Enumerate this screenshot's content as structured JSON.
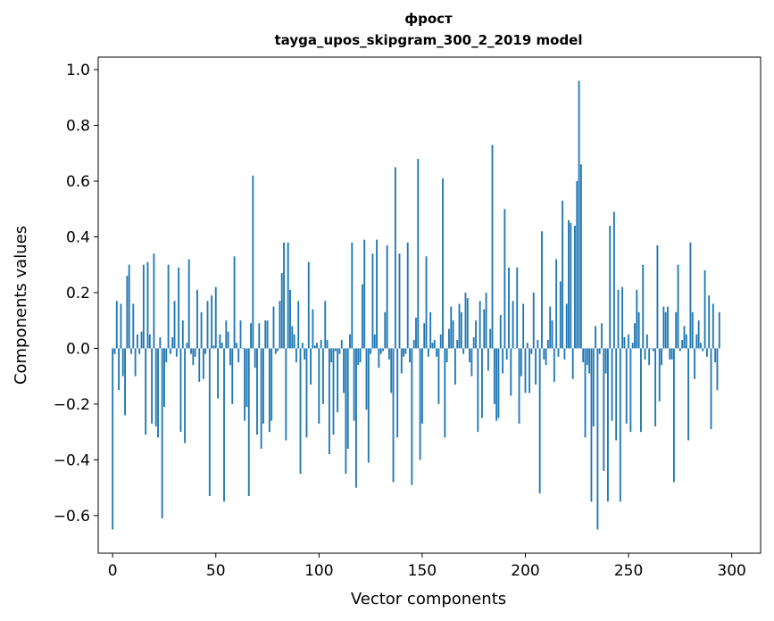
{
  "chart_data": {
    "type": "bar",
    "title": "фрост",
    "subtitle": "tayga_upos_skipgram_300_2_2019 model",
    "xlabel": "Vector components",
    "ylabel": "Components values",
    "xlim": [
      -7,
      314
    ],
    "ylim": [
      -0.735,
      1.045
    ],
    "grid": false,
    "bar_color": "#1f77b4",
    "x_ticks": [
      0,
      50,
      100,
      150,
      200,
      250,
      300
    ],
    "x_tick_labels": [
      "0",
      "50",
      "100",
      "150",
      "200",
      "250",
      "300"
    ],
    "y_ticks": [
      -0.6,
      -0.4,
      -0.2,
      0.0,
      0.2,
      0.4,
      0.6,
      0.8,
      1.0
    ],
    "y_tick_labels": [
      "−0.6",
      "−0.4",
      "−0.2",
      "0.0",
      "0.2",
      "0.4",
      "0.6",
      "0.8",
      "1.0"
    ],
    "values": [
      -0.65,
      -0.02,
      0.17,
      -0.15,
      0.16,
      -0.1,
      -0.24,
      0.26,
      0.3,
      -0.02,
      0.16,
      -0.1,
      0.05,
      -0.02,
      0.06,
      0.3,
      -0.31,
      0.31,
      0.05,
      -0.27,
      0.34,
      -0.28,
      -0.32,
      0.04,
      -0.61,
      -0.21,
      -0.05,
      0.3,
      -0.02,
      0.04,
      0.17,
      -0.03,
      0.29,
      -0.3,
      0.1,
      -0.34,
      0.02,
      0.32,
      -0.02,
      -0.06,
      -0.03,
      0.21,
      -0.12,
      0.13,
      -0.11,
      -0.02,
      0.17,
      -0.53,
      0.19,
      0.01,
      0.22,
      -0.18,
      0.05,
      0.02,
      -0.55,
      0.1,
      0.06,
      -0.06,
      -0.2,
      0.33,
      0.02,
      -0.05,
      0.1,
      0.0,
      -0.26,
      -0.21,
      -0.53,
      0.09,
      0.62,
      -0.07,
      -0.31,
      0.09,
      -0.36,
      -0.27,
      0.1,
      0.1,
      -0.3,
      -0.26,
      0.15,
      -0.02,
      -0.01,
      0.17,
      0.27,
      0.38,
      -0.33,
      0.38,
      0.21,
      0.08,
      0.05,
      -0.05,
      0.17,
      -0.45,
      0.02,
      -0.04,
      -0.32,
      0.31,
      -0.13,
      0.14,
      0.01,
      0.02,
      -0.27,
      0.03,
      -0.2,
      0.17,
      0.03,
      -0.38,
      -0.05,
      -0.31,
      -0.01,
      -0.23,
      -0.02,
      0.03,
      -0.16,
      -0.45,
      -0.36,
      0.05,
      0.38,
      -0.26,
      -0.5,
      -0.06,
      -0.05,
      0.23,
      0.39,
      -0.22,
      -0.41,
      -0.02,
      0.34,
      0.05,
      0.39,
      -0.07,
      -0.02,
      -0.01,
      0.13,
      0.37,
      -0.04,
      -0.16,
      -0.48,
      0.65,
      -0.32,
      0.34,
      -0.09,
      -0.03,
      -0.02,
      0.38,
      -0.05,
      -0.49,
      0.03,
      0.11,
      0.68,
      -0.4,
      -0.27,
      0.09,
      0.33,
      -0.03,
      0.13,
      0.02,
      0.03,
      -0.03,
      -0.2,
      0.05,
      0.61,
      -0.32,
      -0.05,
      0.07,
      0.15,
      0.1,
      -0.13,
      0.03,
      0.16,
      0.13,
      -0.02,
      0.2,
      0.18,
      -0.05,
      -0.1,
      0.04,
      0.1,
      -0.3,
      0.17,
      -0.25,
      0.14,
      0.2,
      -0.08,
      0.07,
      0.73,
      -0.2,
      -0.26,
      -0.25,
      0.12,
      -0.09,
      0.5,
      -0.04,
      0.29,
      -0.17,
      0.17,
      0.0,
      0.29,
      -0.27,
      -0.1,
      0.16,
      -0.16,
      0.02,
      -0.16,
      -0.02,
      0.2,
      -0.13,
      0.03,
      -0.52,
      0.42,
      -0.04,
      -0.06,
      0.03,
      0.15,
      0.1,
      -0.12,
      0.32,
      -0.03,
      0.24,
      0.53,
      -0.04,
      0.16,
      0.46,
      0.45,
      -0.11,
      0.44,
      0.6,
      0.96,
      0.66,
      -0.05,
      -0.32,
      -0.06,
      -0.09,
      -0.55,
      -0.28,
      0.08,
      -0.65,
      -0.02,
      0.09,
      -0.44,
      -0.09,
      -0.55,
      0.44,
      -0.26,
      0.49,
      -0.33,
      0.21,
      -0.55,
      0.22,
      0.04,
      -0.27,
      0.05,
      -0.3,
      0.02,
      0.09,
      0.21,
      0.13,
      -0.3,
      0.3,
      -0.04,
      0.05,
      -0.06,
      0.0,
      -0.01,
      -0.28,
      0.37,
      -0.19,
      -0.06,
      0.15,
      0.13,
      0.15,
      -0.04,
      -0.04,
      -0.48,
      0.13,
      0.3,
      -0.01,
      0.03,
      0.08,
      0.05,
      -0.33,
      0.38,
      0.13,
      -0.11,
      0.05,
      0.1,
      0.02,
      -0.01,
      0.28,
      -0.03,
      0.19,
      -0.29,
      0.16,
      -0.05,
      -0.15,
      0.13
    ]
  }
}
